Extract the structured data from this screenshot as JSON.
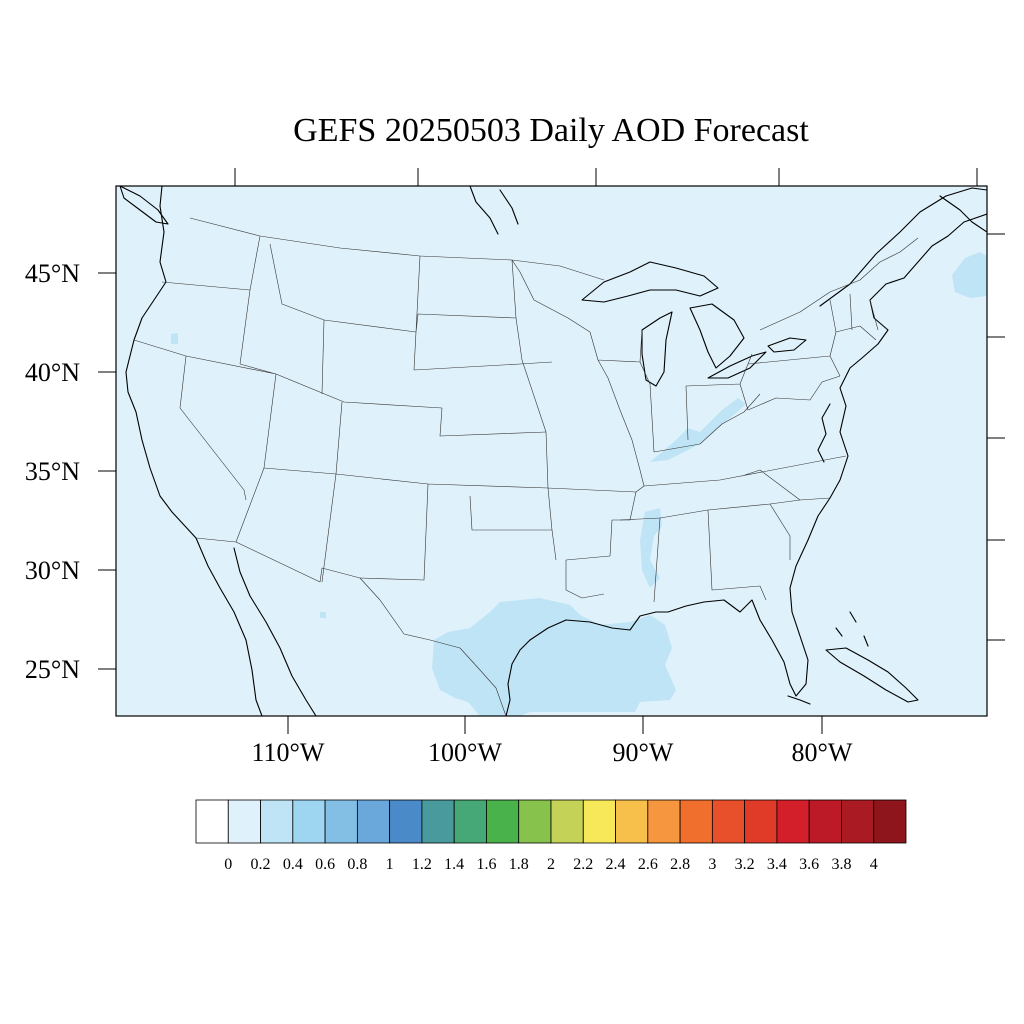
{
  "title": "GEFS 20250503 Daily AOD Forecast",
  "colors": {
    "background": "#ffffff",
    "map_fill": "#dff1fa",
    "outline": "#000000"
  },
  "map": {
    "projection": "lambert-conformal",
    "lat_labels": [
      "45°N",
      "40°N",
      "35°N",
      "30°N",
      "25°N"
    ],
    "lon_labels": [
      "110°W",
      "100°W",
      "90°W",
      "80°W"
    ],
    "field_levels": [
      {
        "range": "0.2-0.4",
        "regions": [
          "southern Texas / western Gulf of Mexico",
          "northeastern Mexico",
          "eastern Kentucky / Ohio Valley",
          "Mississippi",
          "Nova Scotia",
          "northern California"
        ]
      }
    ]
  },
  "colorbar": {
    "colors": [
      "#ffffff",
      "#dff1fa",
      "#bfe4f6",
      "#9ed6f2",
      "#83bee5",
      "#6aa8dc",
      "#4a8ac8",
      "#489a9c",
      "#46a876",
      "#4ab24a",
      "#87c34c",
      "#c4d357",
      "#f7e85a",
      "#f6c04a",
      "#f6963e",
      "#f16f2d",
      "#e8502b",
      "#e03a28",
      "#d21f2a",
      "#bc1a26",
      "#a91a23",
      "#8f151c"
    ],
    "labels": [
      "0",
      "0.2",
      "0.4",
      "0.6",
      "0.8",
      "1",
      "1.2",
      "1.4",
      "1.6",
      "1.8",
      "2",
      "2.2",
      "2.4",
      "2.6",
      "2.8",
      "3",
      "3.2",
      "3.4",
      "3.6",
      "3.8",
      "4"
    ]
  }
}
